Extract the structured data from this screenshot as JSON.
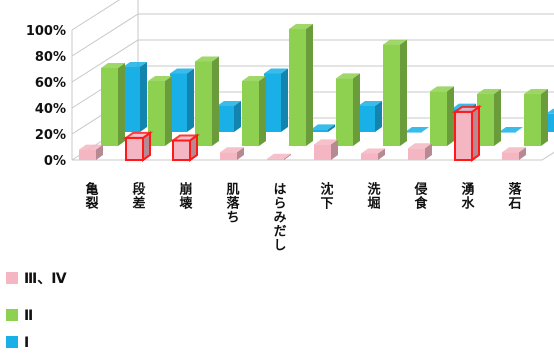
{
  "chart_data": {
    "type": "bar",
    "variant": "3d-clustered-column",
    "categories": [
      "亀裂",
      "段差",
      "崩壊",
      "肌落ち",
      "はらみだし",
      "沈下",
      "洗堀",
      "侵食",
      "湧水",
      "落石"
    ],
    "series": [
      {
        "name": "Ⅲ、Ⅳ",
        "color": "#f4b6c2",
        "values": [
          8,
          17,
          15,
          6,
          1,
          12,
          5,
          9,
          37,
          6
        ]
      },
      {
        "name": "Ⅱ",
        "color": "#8ed04f",
        "values": [
          60,
          50,
          65,
          50,
          90,
          52,
          78,
          42,
          40,
          40
        ]
      },
      {
        "name": "Ⅰ",
        "color": "#18b0e6",
        "values": [
          50,
          45,
          20,
          45,
          2,
          20,
          0,
          18,
          0,
          14
        ]
      }
    ],
    "highlighted": [
      {
        "series": "Ⅲ、Ⅳ",
        "category": "段差"
      },
      {
        "series": "Ⅲ、Ⅳ",
        "category": "崩壊"
      },
      {
        "series": "Ⅲ、Ⅳ",
        "category": "湧水"
      }
    ],
    "highlight_color": "#ff1a1a",
    "ylim": [
      0,
      100
    ],
    "yticks": [
      "0%",
      "20%",
      "40%",
      "60%",
      "80%",
      "100%"
    ],
    "grid": true,
    "legend_position": "bottom-left"
  }
}
